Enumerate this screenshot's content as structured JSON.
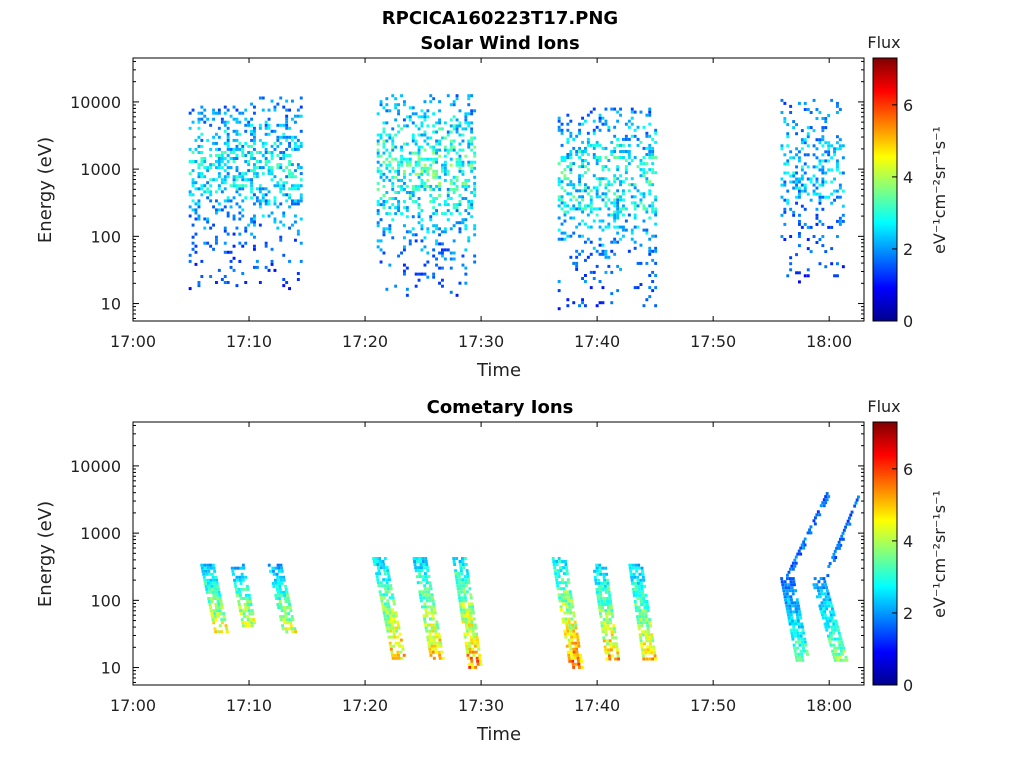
{
  "figure": {
    "title": "RPCICA160223T17.PNG"
  },
  "colormap": [
    "#00008f",
    "#0000ff",
    "#0080ff",
    "#00ffff",
    "#80ff80",
    "#ffff00",
    "#ff8000",
    "#ff0000",
    "#800000"
  ],
  "chart_data": [
    {
      "type": "heatmap",
      "title": "Solar Wind Ions",
      "xlabel": "Time",
      "ylabel": "Energy (eV)",
      "yscale": "log",
      "xlim": [
        "17:00",
        "18:03"
      ],
      "ylim": [
        5.5,
        45000
      ],
      "xticks": [
        "17:00",
        "17:10",
        "17:20",
        "17:30",
        "17:40",
        "17:50",
        "18:00"
      ],
      "yticks": [
        "10",
        "100",
        "1000",
        "10000"
      ],
      "colorbar": {
        "label": "Flux",
        "unit": "eV⁻¹cm⁻²sr⁻¹s⁻¹",
        "range": [
          0,
          7.3
        ],
        "ticks": [
          "0",
          "2",
          "4",
          "6"
        ]
      },
      "clusters": [
        {
          "t_start": 17.08,
          "t_end": 17.24,
          "e_low": 1.2,
          "e_high": 4.05,
          "flux_level": 2.6,
          "density": 0.3
        },
        {
          "t_start": 17.35,
          "t_end": 17.49,
          "e_low": 1.1,
          "e_high": 4.1,
          "flux_level": 3.0,
          "density": 0.35
        },
        {
          "t_start": 17.61,
          "t_end": 17.75,
          "e_low": 0.9,
          "e_high": 3.9,
          "flux_level": 2.8,
          "density": 0.3
        },
        {
          "t_start": 17.93,
          "t_end": 18.02,
          "e_low": 1.3,
          "e_high": 4.0,
          "flux_level": 2.4,
          "density": 0.25
        }
      ]
    },
    {
      "type": "heatmap",
      "title": "Cometary Ions",
      "xlabel": "Time",
      "ylabel": "Energy (eV)",
      "yscale": "log",
      "xlim": [
        "17:00",
        "18:03"
      ],
      "ylim": [
        5.5,
        45000
      ],
      "xticks": [
        "17:00",
        "17:10",
        "17:20",
        "17:30",
        "17:40",
        "17:50",
        "18:00"
      ],
      "yticks": [
        "10",
        "100",
        "1000",
        "10000"
      ],
      "colorbar": {
        "label": "Flux",
        "unit": "eV⁻¹cm⁻²sr⁻¹s⁻¹",
        "range": [
          0,
          7.3
        ],
        "ticks": [
          "0",
          "2",
          "4",
          "6"
        ]
      },
      "streaks": [
        {
          "t_start": 17.105,
          "t_end": 17.125,
          "e_top": 2.5,
          "e_bot": 1.5,
          "flux_level": 4.4
        },
        {
          "t_start": 17.148,
          "t_end": 17.165,
          "e_top": 2.5,
          "e_bot": 1.6,
          "flux_level": 4.2
        },
        {
          "t_start": 17.202,
          "t_end": 17.223,
          "e_top": 2.5,
          "e_bot": 1.5,
          "flux_level": 4.2
        },
        {
          "t_start": 17.352,
          "t_end": 17.38,
          "e_top": 2.6,
          "e_bot": 1.1,
          "flux_level": 4.8
        },
        {
          "t_start": 17.41,
          "t_end": 17.435,
          "e_top": 2.6,
          "e_bot": 1.1,
          "flux_level": 4.8
        },
        {
          "t_start": 17.467,
          "t_end": 17.49,
          "e_top": 2.6,
          "e_bot": 1.0,
          "flux_level": 5.2
        },
        {
          "t_start": 17.61,
          "t_end": 17.635,
          "e_top": 2.6,
          "e_bot": 1.0,
          "flux_level": 5.2
        },
        {
          "t_start": 17.668,
          "t_end": 17.687,
          "e_top": 2.5,
          "e_bot": 1.1,
          "flux_level": 4.8
        },
        {
          "t_start": 17.72,
          "t_end": 17.74,
          "e_top": 2.5,
          "e_bot": 1.1,
          "flux_level": 4.6
        },
        {
          "t_start": 17.938,
          "t_end": 17.96,
          "e_top": 2.3,
          "e_bot": 1.1,
          "flux_level": 3.3
        },
        {
          "t_start": 17.982,
          "t_end": 18.015,
          "e_top": 2.3,
          "e_bot": 1.1,
          "flux_level": 3.6
        }
      ],
      "high_energy_traces": [
        {
          "t_start": 17.938,
          "t_end": 17.995,
          "e_start": 2.35,
          "e_end": 3.55,
          "flux_level": 1.6
        },
        {
          "t_start": 17.99,
          "t_end": 18.04,
          "e_start": 2.3,
          "e_end": 3.5,
          "flux_level": 1.6
        }
      ]
    }
  ]
}
